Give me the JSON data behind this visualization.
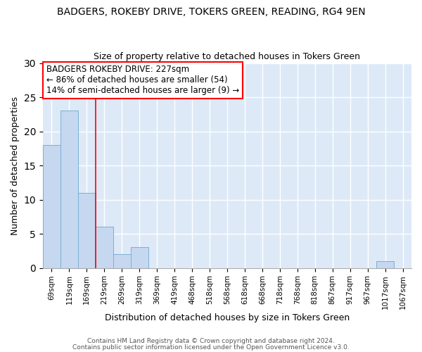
{
  "title": "BADGERS, ROKEBY DRIVE, TOKERS GREEN, READING, RG4 9EN",
  "subtitle": "Size of property relative to detached houses in Tokers Green",
  "xlabel": "Distribution of detached houses by size in Tokers Green",
  "ylabel": "Number of detached properties",
  "bar_color": "#c5d8f0",
  "bar_edge_color": "#7bafd4",
  "background_color": "#dde9f7",
  "grid_color": "#ffffff",
  "categories": [
    "69sqm",
    "119sqm",
    "169sqm",
    "219sqm",
    "269sqm",
    "319sqm",
    "369sqm",
    "419sqm",
    "468sqm",
    "518sqm",
    "568sqm",
    "618sqm",
    "668sqm",
    "718sqm",
    "768sqm",
    "818sqm",
    "867sqm",
    "917sqm",
    "967sqm",
    "1017sqm",
    "1067sqm"
  ],
  "values": [
    18,
    23,
    11,
    6,
    2,
    3,
    0,
    0,
    0,
    0,
    0,
    0,
    0,
    0,
    0,
    0,
    0,
    0,
    0,
    1,
    0
  ],
  "redline_x": 2.5,
  "annotation_line1": "BADGERS ROKEBY DRIVE: 227sqm",
  "annotation_line2": "← 86% of detached houses are smaller (54)",
  "annotation_line3": "14% of semi-detached houses are larger (9) →",
  "ylim": [
    0,
    30
  ],
  "yticks": [
    0,
    5,
    10,
    15,
    20,
    25,
    30
  ],
  "footer_text1": "Contains HM Land Registry data © Crown copyright and database right 2024.",
  "footer_text2": "Contains public sector information licensed under the Open Government Licence v3.0."
}
